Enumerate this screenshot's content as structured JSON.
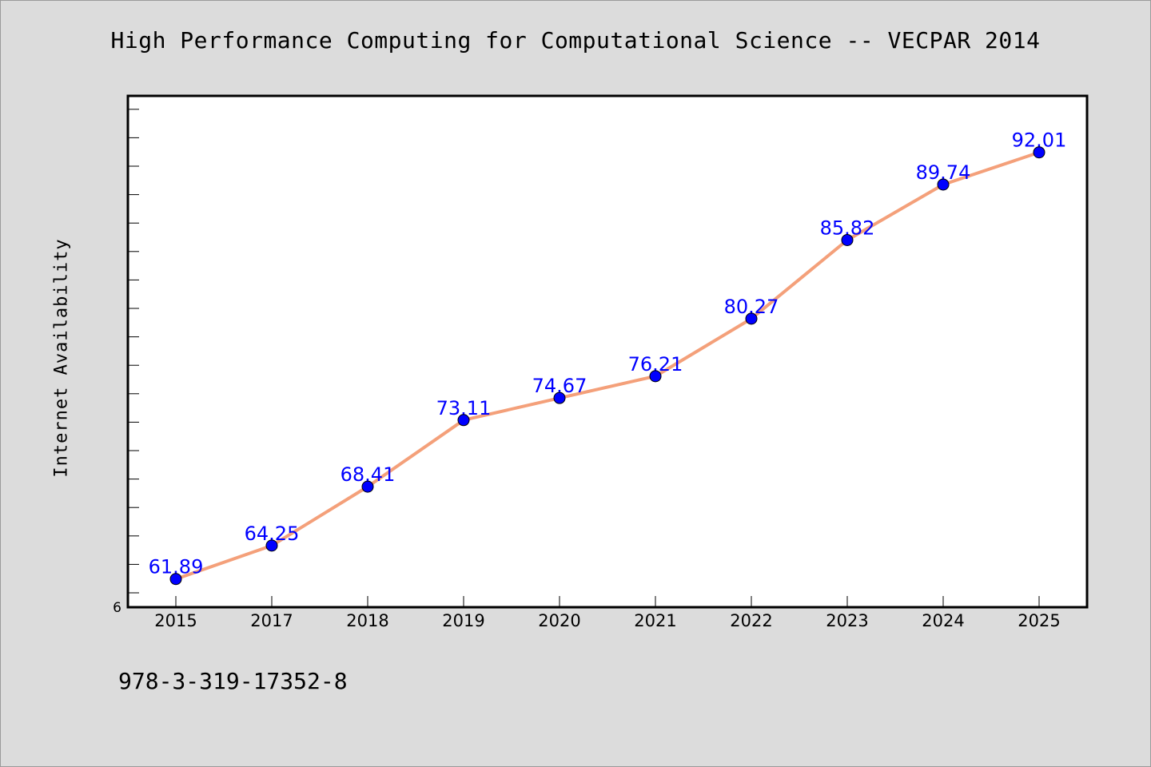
{
  "chart_data": {
    "type": "line",
    "title": "High Performance Computing for Computational Science -- VECPAR 2014",
    "xlabel": "",
    "ylabel": "Internet Availability",
    "categories": [
      "2015",
      "2017",
      "2018",
      "2019",
      "2020",
      "2021",
      "2022",
      "2023",
      "2024",
      "2025"
    ],
    "series": [
      {
        "values": [
          61.89,
          64.25,
          68.41,
          73.11,
          74.67,
          76.21,
          80.27,
          85.82,
          89.74,
          92.01
        ],
        "line_color": "#f4a07a",
        "marker_color": "#0000ff",
        "label_color": "#0000ff"
      }
    ],
    "data_labels": [
      "61.89",
      "64.25",
      "68.41",
      "73.11",
      "74.67",
      "76.21",
      "80.27",
      "85.82",
      "89.74",
      "92.01"
    ],
    "y_tick_labels": [
      "6"
    ],
    "ylim": [
      59.9,
      96.0
    ],
    "grid": false,
    "legend": false
  },
  "footer": {
    "isbn": "978-3-319-17352-8"
  }
}
